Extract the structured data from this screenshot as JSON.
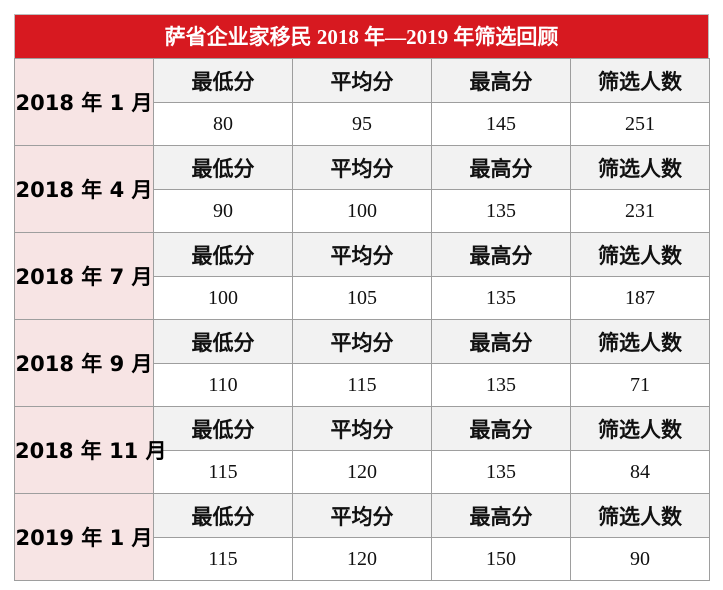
{
  "title": "萨省企业家移民 2018 年—2019 年筛选回顾",
  "colors": {
    "title_bg": "#d71920",
    "date_bg": "#f7e4e4",
    "header_bg": "#f2f2f2",
    "value_bg": "#ffffff"
  },
  "headers": [
    "最低分",
    "平均分",
    "最高分",
    "筛选人数"
  ],
  "rows": [
    {
      "date": "2018 年 1 月",
      "values": [
        "80",
        "95",
        "145",
        "251"
      ]
    },
    {
      "date": "2018 年 4 月",
      "values": [
        "90",
        "100",
        "135",
        "231"
      ]
    },
    {
      "date": "2018 年 7 月",
      "values": [
        "100",
        "105",
        "135",
        "187"
      ]
    },
    {
      "date": "2018 年 9 月",
      "values": [
        "110",
        "115",
        "135",
        "71"
      ]
    },
    {
      "date": "2018 年 11 月",
      "values": [
        "115",
        "120",
        "135",
        "84"
      ]
    },
    {
      "date": "2019 年 1 月",
      "values": [
        "115",
        "120",
        "150",
        "90"
      ]
    }
  ]
}
